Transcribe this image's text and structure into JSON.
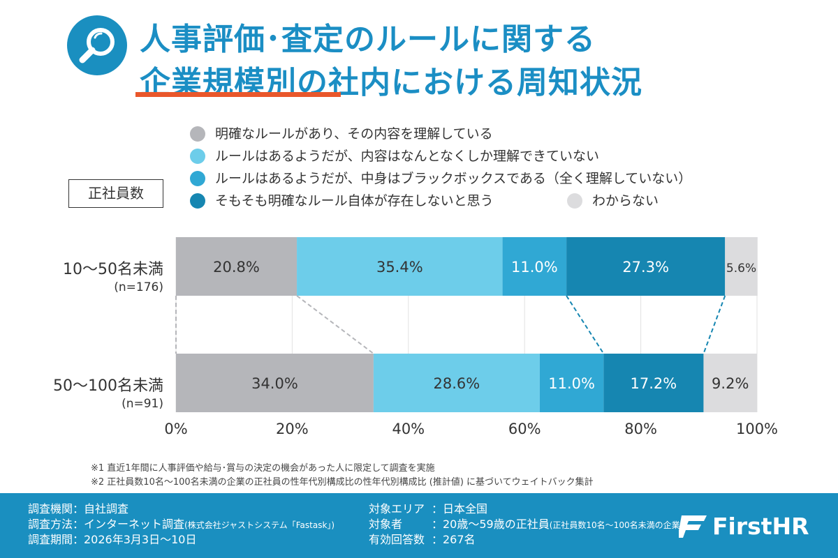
{
  "header": {
    "title_line1": "人事評価･査定のルールに関する",
    "title_line2_highlight": "企業規模別",
    "title_line2_rest": "の社内における周知状況",
    "icon": "magnifier-icon"
  },
  "category_label": "正社員数",
  "legend": [
    {
      "label": "明確なルールがあり、その内容を理解している",
      "color": "#b5b6ba"
    },
    {
      "label": "ルールはあるようだが、内容はなんとなくしか理解できていない",
      "color": "#6dcdea"
    },
    {
      "label": "ルールはあるようだが、中身はブラックボックスである（全く理解していない）",
      "color": "#30a8d4"
    },
    {
      "label": "そもそも明確なルール自体が存在しないと思う",
      "color": "#1686b1"
    },
    {
      "label": "わからない",
      "color": "#dcdcde"
    }
  ],
  "rows": [
    {
      "name": "10〜50名未満",
      "n": "(n=176)"
    },
    {
      "name": "50〜100名未満",
      "n": "(n=91)"
    }
  ],
  "chart_data": {
    "type": "bar",
    "orientation": "horizontal",
    "stacked": true,
    "categories": [
      "10〜50名未満",
      "50〜100名未満"
    ],
    "series": [
      {
        "name": "明確なルールがあり、その内容を理解している",
        "values": [
          20.8,
          34.0
        ],
        "labels": [
          "20.8%",
          "34.0%"
        ]
      },
      {
        "name": "ルールはあるようだが、内容はなんとなくしか理解できていない",
        "values": [
          35.4,
          28.6
        ],
        "labels": [
          "35.4%",
          "28.6%"
        ]
      },
      {
        "name": "ルールはあるようだが、中身はブラックボックスである（全く理解していない）",
        "values": [
          11.0,
          11.0
        ],
        "labels": [
          "11.0%",
          "11.0%"
        ]
      },
      {
        "name": "そもそも明確なルール自体が存在しないと思う",
        "values": [
          27.3,
          17.2
        ],
        "labels": [
          "27.3%",
          "17.2%"
        ]
      },
      {
        "name": "わからない",
        "values": [
          5.6,
          9.2
        ],
        "labels": [
          "5.6%",
          "9.2%"
        ]
      }
    ],
    "xlim": [
      0,
      100
    ],
    "x_ticks": [
      "0%",
      "20%",
      "40%",
      "60%",
      "80%",
      "100%"
    ],
    "grid": true,
    "legend_position": "top"
  },
  "notes": [
    "※1  直近1年間に人事評価や給与･賞与の決定の機会があった人に限定して調査を実施",
    "※2  正社員数10名〜100名未満の企業の正社員の性年代別構成比の性年代別構成比 (推計値) に基づいてウェイトバック集計"
  ],
  "footer": {
    "org": "調査機関：自社調査",
    "method_main": "調査方法：インターネット調査",
    "method_sub": "(株式会社ジャストシステム「Fastask」)",
    "period": "調査期間：2026年3月3日〜10日",
    "area_k": "対象エリア",
    "area_v": "：日本全国",
    "target_k": "対象者",
    "target_v": "：20歳〜59歳の正社員",
    "target_sub": "(正社員数10名〜100名未満の企業)",
    "count_k": "有効回答数",
    "count_v": "：267名",
    "brand": "FirstHR",
    "brand_icon": "firsthr-logo-icon"
  }
}
